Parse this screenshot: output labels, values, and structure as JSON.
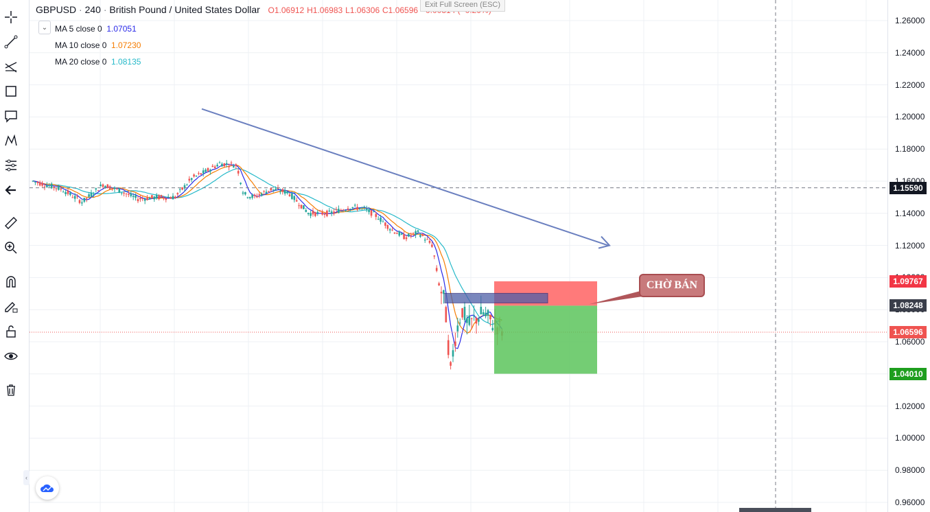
{
  "legend": {
    "symbol": "GBPUSD",
    "interval": "240",
    "description": "British Pound / United States Dollar",
    "open": "O1.06912",
    "high": "H1.06983",
    "low": "L1.06306",
    "close": "C1.06596",
    "change": "−0.00314 (−0.29%)"
  },
  "indicators": [
    {
      "label": "MA 5 close 0",
      "value": "1.07051",
      "color": "#2a2ae8"
    },
    {
      "label": "MA 10 close 0",
      "value": "1.07230",
      "color": "#f57c00"
    },
    {
      "label": "MA 20 close 0",
      "value": "1.08135",
      "color": "#26b9c9"
    }
  ],
  "exit_fullscreen": "Exit Full Screen (ESC)",
  "annotation": "CHỜ BÁN",
  "price_axis": {
    "ticks": [
      "1.26000",
      "1.24000",
      "1.22000",
      "1.20000",
      "1.18000",
      "1.16000",
      "1.14000",
      "1.12000",
      "1.10000",
      "1.08000",
      "1.06000",
      "1.04000",
      "1.02000",
      "1.00000",
      "0.98000",
      "0.96000"
    ],
    "tags": {
      "crosshair": "1.15590",
      "stop": "1.09767",
      "entry": "1.08248",
      "last": "1.06596",
      "target": "1.04010"
    }
  },
  "colors": {
    "up": "#26a69a",
    "down": "#ef5350",
    "stop_zone": "#ff6b6b",
    "target_zone": "#5cc45c",
    "trend_line": "#6a7fbf",
    "entry_box": "#4e5fa8"
  },
  "toolbar": {
    "icons": [
      "crosshair-icon",
      "trend-line-icon",
      "fib-icon",
      "rectangle-icon",
      "text-note-icon",
      "pattern-icon",
      "forecast-icon",
      "back-arrow-icon",
      "ruler-icon",
      "zoom-in-icon",
      "magnet-icon",
      "lock-drawing-icon",
      "unlock-icon",
      "eye-icon",
      "trash-icon"
    ]
  },
  "chart_data": {
    "type": "candlestick",
    "symbol": "GBPUSD",
    "interval": "240",
    "ylim": [
      0.955,
      1.27
    ],
    "ohlc_last": {
      "open": 1.06912,
      "high": 1.06983,
      "low": 1.06306,
      "close": 1.06596
    },
    "position": {
      "side": "short",
      "entry": 1.08248,
      "stop": 1.09767,
      "target": 1.0401
    },
    "horizontal_line": 1.1559,
    "trend_line": {
      "start": 1.205,
      "end": 1.12
    }
  }
}
